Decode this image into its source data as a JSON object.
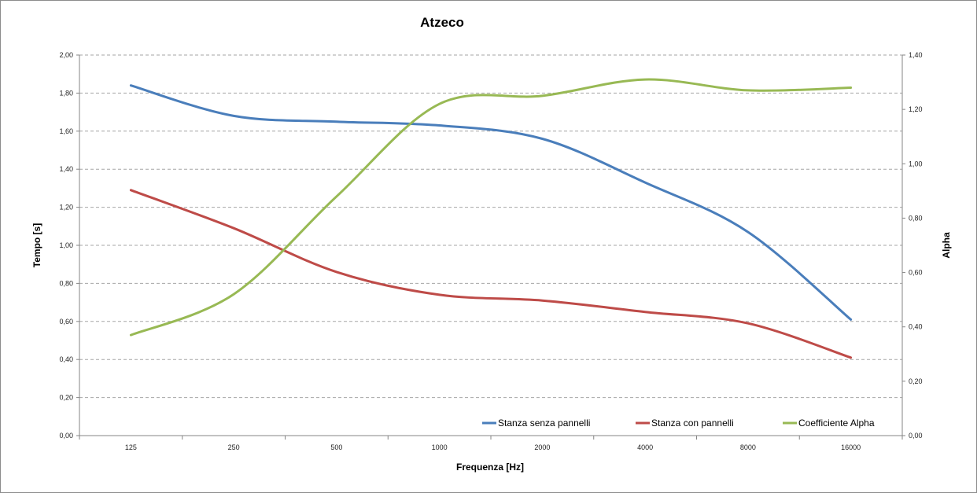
{
  "chart_data": {
    "type": "line",
    "title": "Atzeco",
    "xlabel": "Frequenza [Hz]",
    "ylabel": "Tempo [s]",
    "y2label": "Alpha",
    "categories": [
      "125",
      "250",
      "500",
      "1000",
      "2000",
      "4000",
      "8000",
      "16000"
    ],
    "ylim": [
      0,
      2.0
    ],
    "y2lim": [
      0,
      1.4
    ],
    "yticks": [
      "0,00",
      "0,20",
      "0,40",
      "0,60",
      "0,80",
      "1,00",
      "1,20",
      "1,40",
      "1,60",
      "1,80",
      "2,00"
    ],
    "y2ticks": [
      "0,00",
      "0,20",
      "0,40",
      "0,60",
      "0,80",
      "1,00",
      "1,20",
      "1,40"
    ],
    "grid": true,
    "legend_position": "bottom-right",
    "series": [
      {
        "name": "Stanza senza pannelli",
        "axis": "left",
        "color": "#4a7ebb",
        "values": [
          1.84,
          1.68,
          1.65,
          1.63,
          1.56,
          1.33,
          1.07,
          0.61
        ]
      },
      {
        "name": "Stanza con pannelli",
        "axis": "left",
        "color": "#be4b48",
        "values": [
          1.29,
          1.09,
          0.86,
          0.74,
          0.71,
          0.65,
          0.59,
          0.41
        ]
      },
      {
        "name": "Coefficiente Alpha",
        "axis": "right",
        "color": "#98b954",
        "values": [
          0.37,
          0.52,
          0.88,
          1.22,
          1.25,
          1.31,
          1.27,
          1.28
        ]
      }
    ]
  }
}
